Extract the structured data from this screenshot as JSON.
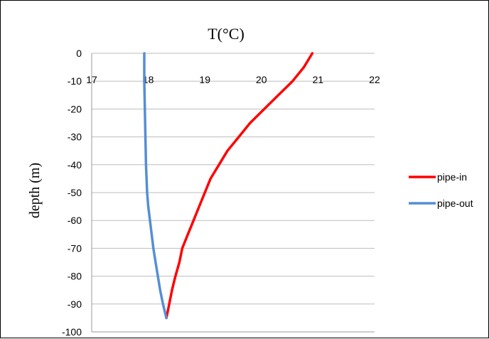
{
  "chart_data": {
    "type": "line",
    "title": "T(°C)",
    "xlabel": "T(°C)",
    "ylabel": "depth (m)",
    "xlim": [
      17,
      22
    ],
    "ylim": [
      -100,
      0
    ],
    "x_ticks": [
      "17",
      "18",
      "19",
      "20",
      "21",
      "22"
    ],
    "y_ticks": [
      "0",
      "-10",
      "-20",
      "-30",
      "-40",
      "-50",
      "-60",
      "-70",
      "-80",
      "-90",
      "-100"
    ],
    "grid": "horizontal",
    "legend_position": "right",
    "series": [
      {
        "name": "pipe-in",
        "color": "#ff0000",
        "points": [
          [
            20.9,
            0
          ],
          [
            20.75,
            -5
          ],
          [
            20.55,
            -10
          ],
          [
            20.3,
            -15
          ],
          [
            20.05,
            -20
          ],
          [
            19.8,
            -25
          ],
          [
            19.6,
            -30
          ],
          [
            19.4,
            -35
          ],
          [
            19.25,
            -40
          ],
          [
            19.1,
            -45
          ],
          [
            19.0,
            -50
          ],
          [
            18.9,
            -55
          ],
          [
            18.8,
            -60
          ],
          [
            18.7,
            -65
          ],
          [
            18.6,
            -70
          ],
          [
            18.55,
            -75
          ],
          [
            18.48,
            -80
          ],
          [
            18.42,
            -85
          ],
          [
            18.37,
            -90
          ],
          [
            18.32,
            -95
          ]
        ]
      },
      {
        "name": "pipe-out",
        "color": "#558ed5",
        "points": [
          [
            17.93,
            0
          ],
          [
            17.93,
            -10
          ],
          [
            17.94,
            -20
          ],
          [
            17.95,
            -30
          ],
          [
            17.96,
            -40
          ],
          [
            17.98,
            -50
          ],
          [
            18.0,
            -55
          ],
          [
            18.03,
            -60
          ],
          [
            18.06,
            -65
          ],
          [
            18.09,
            -70
          ],
          [
            18.13,
            -75
          ],
          [
            18.17,
            -80
          ],
          [
            18.21,
            -85
          ],
          [
            18.26,
            -90
          ],
          [
            18.32,
            -95
          ]
        ]
      }
    ]
  }
}
